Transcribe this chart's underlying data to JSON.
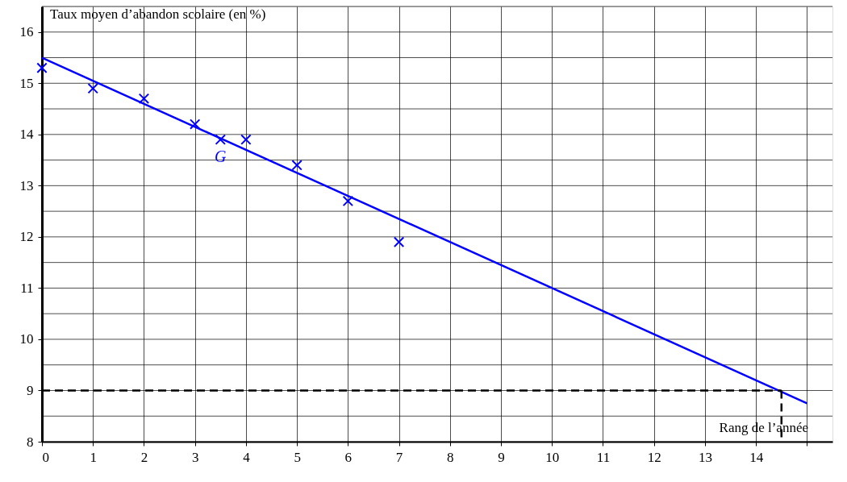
{
  "chart_data": {
    "type": "scatter",
    "xlabel": "Rang de l’année",
    "ylabel": "Taux moyen d’abandon scolaire (en  %)",
    "xlim": [
      0,
      15.5
    ],
    "ylim": [
      8,
      16.5
    ],
    "xticks": [
      0,
      1,
      2,
      3,
      4,
      5,
      6,
      7,
      8,
      9,
      10,
      11,
      12,
      13,
      14,
      {
        "value": 15,
        "label": null
      }
    ],
    "yticks": [
      8,
      {
        "value": 8.5,
        "label": null
      },
      9,
      {
        "value": 9.5,
        "label": null
      },
      10,
      {
        "value": 10.5,
        "label": null
      },
      11,
      {
        "value": 11.5,
        "label": null
      },
      12,
      {
        "value": 12.5,
        "label": null
      },
      13,
      {
        "value": 13.5,
        "label": null
      },
      14,
      {
        "value": 14.5,
        "label": null
      },
      15,
      {
        "value": 15.5,
        "label": null
      },
      16,
      {
        "value": 16.5,
        "label": null
      }
    ],
    "grid": true,
    "series": [
      {
        "color": "#0000ff",
        "marker": "cross",
        "x": [
          0,
          1,
          2,
          3,
          4,
          5,
          6,
          7
        ],
        "values": [
          15.3,
          14.9,
          14.7,
          14.2,
          13.9,
          13.4,
          12.7,
          11.9
        ]
      },
      {
        "color": "#0000ff",
        "marker": "cross",
        "x": [
          3.5
        ],
        "values": [
          13.9
        ]
      },
      {
        "type": "line",
        "color": "#0000ff",
        "line_style": "solid",
        "x": [
          0,
          15
        ],
        "values": [
          15.5,
          8.75
        ]
      },
      {
        "type": "line",
        "color": "#000000",
        "line_style": "dashed",
        "x": [
          0,
          14.5
        ],
        "values": [
          9,
          9
        ]
      },
      {
        "type": "line",
        "color": "#000000",
        "line_style": "dashed",
        "x": [
          14.5,
          14.5
        ],
        "values": [
          9,
          8
        ]
      }
    ],
    "annotations": [
      {
        "text": "G",
        "x": 3.5,
        "y": 13.9
      }
    ]
  }
}
